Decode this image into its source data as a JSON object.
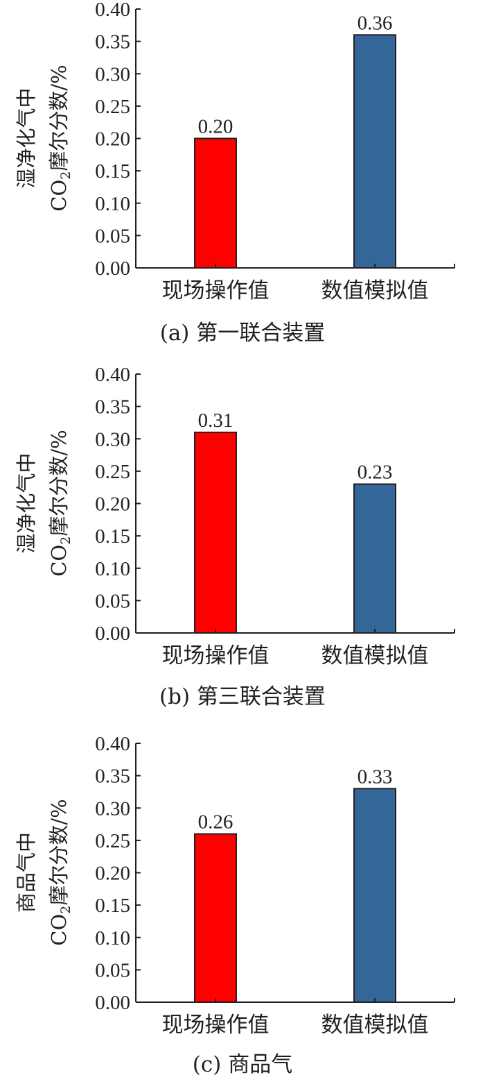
{
  "chart_data": [
    {
      "type": "bar",
      "caption": "(a) 第一联合装置",
      "ylabel_line1": "湿净化气中",
      "ylabel_line2_co": "CO",
      "ylabel_line2_sub": "2",
      "ylabel_line2_rest": "摩尔分数/%",
      "categories": [
        "现场操作值",
        "数值模拟值"
      ],
      "values": [
        0.2,
        0.36
      ],
      "value_labels": [
        "0.20",
        "0.36"
      ],
      "ylim": [
        0,
        0.4
      ],
      "yticks": [
        "0.00",
        "0.05",
        "0.10",
        "0.15",
        "0.20",
        "0.25",
        "0.30",
        "0.35",
        "0.40"
      ],
      "colors": [
        "#ff0000",
        "#336699"
      ],
      "grid": false
    },
    {
      "type": "bar",
      "caption": "(b) 第三联合装置",
      "ylabel_line1": "湿净化气中",
      "ylabel_line2_co": "CO",
      "ylabel_line2_sub": "2",
      "ylabel_line2_rest": "摩尔分数/%",
      "categories": [
        "现场操作值",
        "数值模拟值"
      ],
      "values": [
        0.31,
        0.23
      ],
      "value_labels": [
        "0.31",
        "0.23"
      ],
      "ylim": [
        0,
        0.4
      ],
      "yticks": [
        "0.00",
        "0.05",
        "0.10",
        "0.15",
        "0.20",
        "0.25",
        "0.30",
        "0.35",
        "0.40"
      ],
      "colors": [
        "#ff0000",
        "#336699"
      ],
      "grid": false
    },
    {
      "type": "bar",
      "caption": "(c) 商品气",
      "ylabel_line1": "商品气中",
      "ylabel_line2_co": "CO",
      "ylabel_line2_sub": "2",
      "ylabel_line2_rest": "摩尔分数/%",
      "categories": [
        "现场操作值",
        "数值模拟值"
      ],
      "values": [
        0.26,
        0.33
      ],
      "value_labels": [
        "0.26",
        "0.33"
      ],
      "ylim": [
        0,
        0.4
      ],
      "yticks": [
        "0.00",
        "0.05",
        "0.10",
        "0.15",
        "0.20",
        "0.25",
        "0.30",
        "0.35",
        "0.40"
      ],
      "colors": [
        "#ff0000",
        "#336699"
      ],
      "grid": false
    }
  ]
}
